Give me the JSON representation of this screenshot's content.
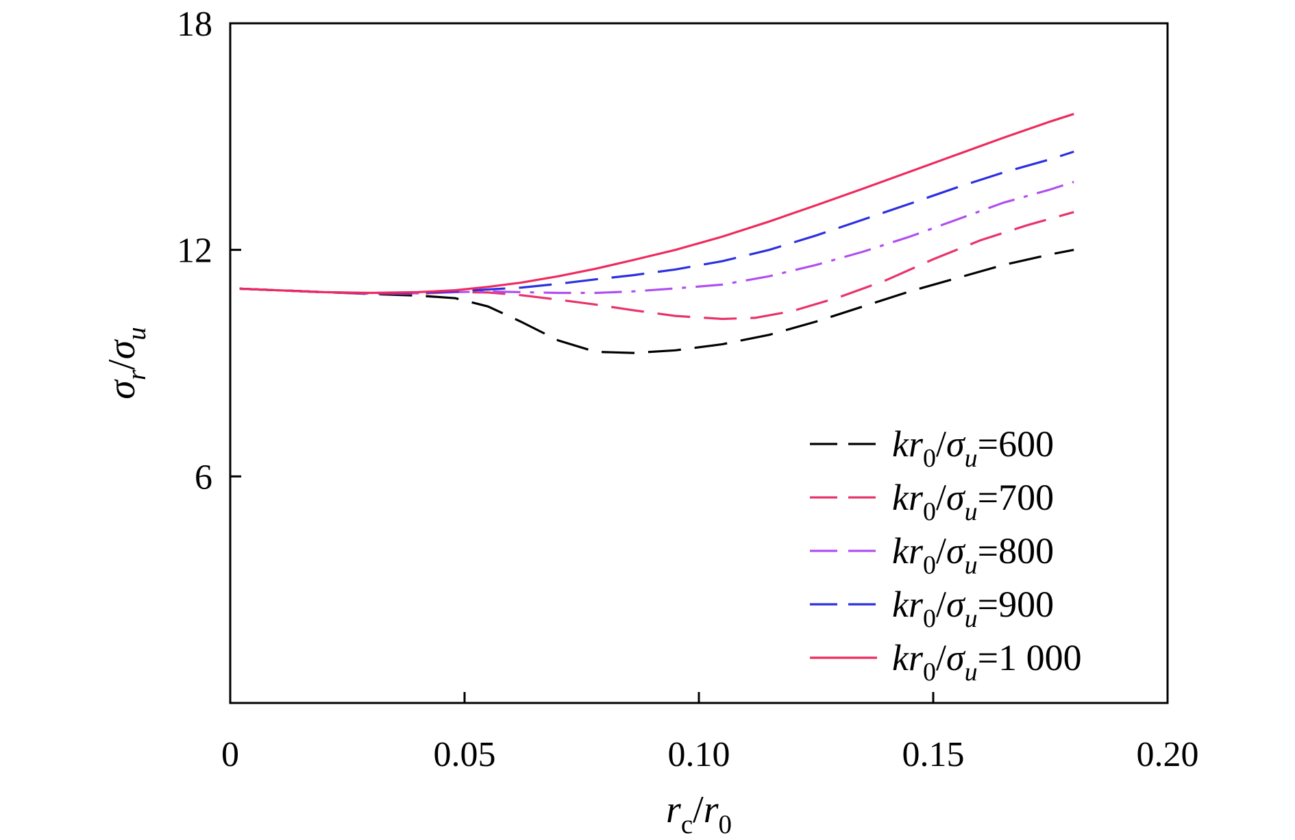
{
  "chart_data": {
    "type": "line",
    "xlabel_parts": [
      {
        "text": "r",
        "italic": true
      },
      {
        "text": "c",
        "sub": true,
        "italic": false
      },
      {
        "text": "/",
        "italic": false
      },
      {
        "text": "r",
        "italic": true
      },
      {
        "text": "0",
        "sub": true,
        "italic": false
      }
    ],
    "ylabel_parts": [
      {
        "text": "σ",
        "italic": true
      },
      {
        "text": "r",
        "sub": true,
        "italic": true
      },
      {
        "text": "/",
        "italic": false
      },
      {
        "text": "σ",
        "italic": true
      },
      {
        "text": "u",
        "sub": true,
        "italic": true
      }
    ],
    "xlim": [
      0,
      0.2
    ],
    "ylim": [
      0,
      18
    ],
    "x_ticks": [
      0,
      0.05,
      0.1,
      0.15,
      0.2
    ],
    "x_tick_labels": [
      "0",
      "0.05",
      "0.10",
      "0.15",
      "0.20"
    ],
    "y_ticks": [
      6,
      12,
      18
    ],
    "y_tick_labels": [
      "6",
      "12",
      "18"
    ],
    "grid": false,
    "legend_position": "bottom-right",
    "series": [
      {
        "name": "kr0/σu=600",
        "label_value": "600",
        "color": "#000000",
        "dash": "long-dash",
        "x": [
          0.002,
          0.01,
          0.02,
          0.03,
          0.04,
          0.048,
          0.055,
          0.062,
          0.07,
          0.078,
          0.086,
          0.095,
          0.105,
          0.115,
          0.125,
          0.135,
          0.145,
          0.155,
          0.165,
          0.175,
          0.18
        ],
        "y": [
          10.97,
          10.93,
          10.88,
          10.83,
          10.79,
          10.72,
          10.5,
          10.1,
          9.6,
          9.3,
          9.27,
          9.34,
          9.5,
          9.75,
          10.1,
          10.5,
          10.9,
          11.25,
          11.6,
          11.88,
          12.0
        ]
      },
      {
        "name": "kr0/σu=700",
        "label_value": "700",
        "color": "#e8336a",
        "dash": "long-dash",
        "x": [
          0.002,
          0.01,
          0.02,
          0.03,
          0.04,
          0.048,
          0.055,
          0.062,
          0.07,
          0.078,
          0.086,
          0.095,
          0.105,
          0.112,
          0.12,
          0.13,
          0.14,
          0.15,
          0.16,
          0.17,
          0.18
        ],
        "y": [
          10.97,
          10.93,
          10.88,
          10.84,
          10.84,
          10.88,
          10.87,
          10.8,
          10.68,
          10.55,
          10.4,
          10.25,
          10.17,
          10.2,
          10.38,
          10.75,
          11.2,
          11.75,
          12.25,
          12.65,
          13.0
        ]
      },
      {
        "name": "kr0/σu=800",
        "label_value": "800",
        "color": "#b04ff0",
        "dash": "dash-dot",
        "x": [
          0.002,
          0.01,
          0.02,
          0.03,
          0.04,
          0.048,
          0.055,
          0.062,
          0.07,
          0.078,
          0.086,
          0.095,
          0.105,
          0.115,
          0.125,
          0.135,
          0.145,
          0.155,
          0.165,
          0.175,
          0.18
        ],
        "y": [
          10.97,
          10.93,
          10.88,
          10.84,
          10.85,
          10.88,
          10.9,
          10.88,
          10.86,
          10.86,
          10.9,
          10.98,
          11.08,
          11.3,
          11.6,
          11.95,
          12.35,
          12.8,
          13.25,
          13.6,
          13.8
        ]
      },
      {
        "name": "kr0/σu=900",
        "label_value": "900",
        "color": "#2b2fe0",
        "dash": "long-dash",
        "x": [
          0.002,
          0.01,
          0.02,
          0.03,
          0.04,
          0.048,
          0.055,
          0.062,
          0.07,
          0.078,
          0.086,
          0.095,
          0.105,
          0.115,
          0.125,
          0.135,
          0.145,
          0.155,
          0.165,
          0.175,
          0.18
        ],
        "y": [
          10.97,
          10.93,
          10.88,
          10.85,
          10.86,
          10.9,
          10.95,
          11.0,
          11.1,
          11.22,
          11.33,
          11.48,
          11.7,
          12.0,
          12.38,
          12.8,
          13.22,
          13.65,
          14.05,
          14.4,
          14.6
        ]
      },
      {
        "name": "kr0/σu=1 000",
        "label_value": "1 000",
        "color": "#ee2a5e",
        "dash": "solid",
        "x": [
          0.002,
          0.01,
          0.02,
          0.03,
          0.04,
          0.048,
          0.055,
          0.062,
          0.07,
          0.078,
          0.086,
          0.095,
          0.105,
          0.115,
          0.125,
          0.135,
          0.145,
          0.155,
          0.165,
          0.175,
          0.18
        ],
        "y": [
          10.97,
          10.93,
          10.88,
          10.86,
          10.88,
          10.93,
          11.02,
          11.13,
          11.3,
          11.5,
          11.73,
          12.0,
          12.35,
          12.75,
          13.18,
          13.62,
          14.07,
          14.52,
          14.97,
          15.4,
          15.6
        ]
      }
    ],
    "legend_prefix_parts": [
      {
        "text": "kr",
        "italic": true
      },
      {
        "text": "0",
        "sub": true,
        "italic": false
      },
      {
        "text": "/",
        "italic": false
      },
      {
        "text": "σ",
        "italic": true
      },
      {
        "text": "u",
        "sub": true,
        "italic": true
      },
      {
        "text": "=",
        "italic": false
      }
    ]
  }
}
